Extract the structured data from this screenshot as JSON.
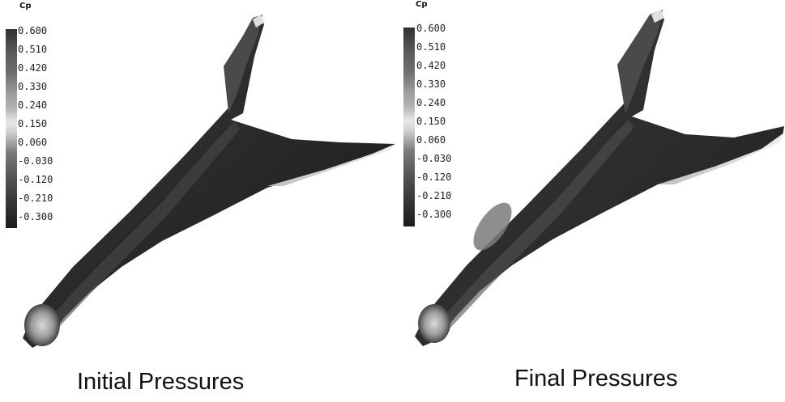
{
  "panels": [
    {
      "caption": "Initial Pressures",
      "legend": {
        "title": "Cp",
        "ticks": [
          "0.600",
          "0.510",
          "0.420",
          "0.330",
          "0.240",
          "0.150",
          "0.060",
          "-0.030",
          "-0.120",
          "-0.210",
          "-0.300"
        ]
      }
    },
    {
      "caption": "Final Pressures",
      "legend": {
        "title": "Cp",
        "ticks": [
          "0.600",
          "0.510",
          "0.420",
          "0.330",
          "0.240",
          "0.150",
          "0.060",
          "-0.030",
          "-0.120",
          "-0.210",
          "-0.300"
        ]
      }
    }
  ],
  "colors": {
    "surface_dark": "#2a2a2a",
    "surface_mid": "#5a5a5a",
    "highlight": "#c8c8c8"
  }
}
